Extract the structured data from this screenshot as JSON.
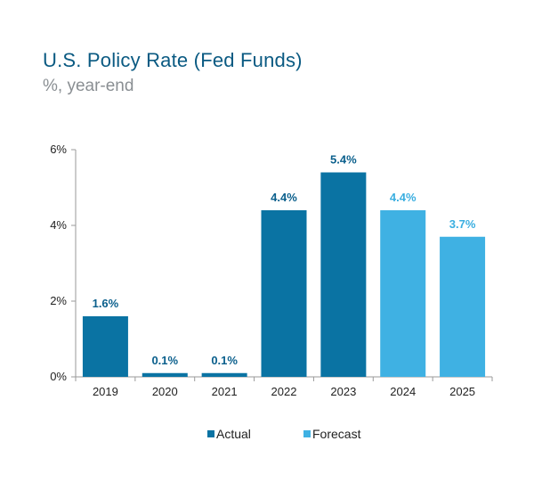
{
  "chart_data": {
    "type": "bar",
    "title": "U.S. Policy Rate (Fed Funds)",
    "subtitle": "%, year-end",
    "xlabel": "",
    "ylabel": "",
    "ylim": [
      0,
      6
    ],
    "yticks": [
      0,
      2,
      4,
      6
    ],
    "ytick_labels": [
      "0%",
      "2%",
      "4%",
      "6%"
    ],
    "categories": [
      "2019",
      "2020",
      "2021",
      "2022",
      "2023",
      "2024",
      "2025"
    ],
    "values": [
      1.6,
      0.1,
      0.1,
      4.4,
      5.4,
      4.4,
      3.7
    ],
    "data_labels": [
      "1.6%",
      "0.1%",
      "0.1%",
      "4.4%",
      "5.4%",
      "4.4%",
      "3.7%"
    ],
    "series_of_point": [
      "actual",
      "actual",
      "actual",
      "actual",
      "actual",
      "forecast",
      "forecast"
    ],
    "legend": [
      {
        "key": "actual",
        "label": "Actual",
        "color": "#0a73a3",
        "label_color": "#0a5f8c"
      },
      {
        "key": "forecast",
        "label": "Forecast",
        "color": "#3fb1e3",
        "label_color": "#3aaee0"
      }
    ],
    "legend_position": "bottom-center",
    "grid": false
  }
}
